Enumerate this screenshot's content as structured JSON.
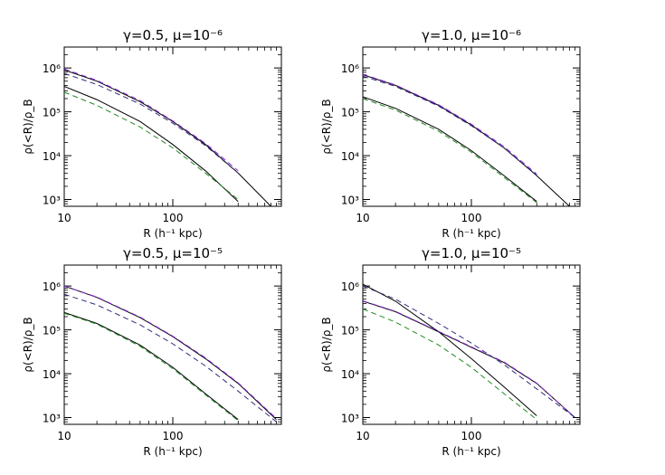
{
  "chart_data": [
    {
      "type": "line",
      "title": "γ=0.5,  μ=10⁻⁶",
      "xlabel": "R (h⁻¹ kpc)",
      "ylabel": "ρ(<R)/ρ_B",
      "xscale": "log",
      "yscale": "log",
      "xlim": [
        10,
        1000
      ],
      "ylim": [
        700,
        3000000
      ],
      "xticks": [
        {
          "v": 10,
          "label": "10"
        },
        {
          "v": 100,
          "label": "100"
        }
      ],
      "yticks": [
        {
          "v": 1000,
          "label": "10³"
        },
        {
          "v": 10000,
          "label": "10⁴"
        },
        {
          "v": 100000,
          "label": "10⁵"
        },
        {
          "v": 1000000,
          "label": "10⁶"
        }
      ],
      "series": [
        {
          "color": "#000000",
          "dash": "solid",
          "x": [
            10,
            20,
            50,
            100,
            200,
            400,
            800
          ],
          "y": [
            900000,
            500000,
            170000,
            60000,
            18000,
            4000,
            700
          ]
        },
        {
          "color": "#000000",
          "dash": "solid",
          "x": [
            10,
            20,
            50,
            100,
            200,
            400
          ],
          "y": [
            380000,
            190000,
            60000,
            18000,
            4500,
            900
          ]
        },
        {
          "color": "#8a2be2",
          "dash": "dashed",
          "x": [
            10,
            20,
            50,
            100,
            200,
            400
          ],
          "y": [
            950000,
            520000,
            180000,
            62000,
            19000,
            4500
          ]
        },
        {
          "color": "#2f2f7a",
          "dash": "dashed",
          "x": [
            10,
            20,
            50,
            100,
            200,
            400
          ],
          "y": [
            750000,
            420000,
            150000,
            55000,
            17000,
            4000
          ]
        },
        {
          "color": "#228b22",
          "dash": "dashed",
          "x": [
            10,
            20,
            50,
            100,
            200,
            400
          ],
          "y": [
            280000,
            140000,
            45000,
            15000,
            4000,
            1000
          ]
        }
      ]
    },
    {
      "type": "line",
      "title": "γ=1.0,  μ=10⁻⁶",
      "xlabel": "R (h⁻¹ kpc)",
      "ylabel": "ρ(<R)/ρ_B",
      "xscale": "log",
      "yscale": "log",
      "xlim": [
        10,
        1000
      ],
      "ylim": [
        700,
        3000000
      ],
      "xticks": [
        {
          "v": 10,
          "label": "10"
        },
        {
          "v": 100,
          "label": "100"
        }
      ],
      "yticks": [
        {
          "v": 1000,
          "label": "10³"
        },
        {
          "v": 10000,
          "label": "10⁴"
        },
        {
          "v": 100000,
          "label": "10⁵"
        },
        {
          "v": 1000000,
          "label": "10⁶"
        }
      ],
      "series": [
        {
          "color": "#000000",
          "dash": "solid",
          "x": [
            10,
            20,
            50,
            100,
            200,
            400,
            800
          ],
          "y": [
            700000,
            400000,
            140000,
            50000,
            15000,
            3500,
            700
          ]
        },
        {
          "color": "#000000",
          "dash": "solid",
          "x": [
            10,
            20,
            50,
            100,
            200,
            400
          ],
          "y": [
            220000,
            120000,
            40000,
            13000,
            3500,
            900
          ]
        },
        {
          "color": "#8a2be2",
          "dash": "dashed",
          "x": [
            10,
            20,
            50,
            100,
            200,
            400
          ],
          "y": [
            720000,
            410000,
            145000,
            52000,
            16000,
            3800
          ]
        },
        {
          "color": "#2f2f7a",
          "dash": "dashed",
          "x": [
            10,
            20,
            50,
            100,
            200,
            400
          ],
          "y": [
            650000,
            380000,
            135000,
            48000,
            15000,
            3600
          ]
        },
        {
          "color": "#228b22",
          "dash": "dashed",
          "x": [
            10,
            20,
            50,
            100,
            200,
            400
          ],
          "y": [
            200000,
            110000,
            36000,
            12000,
            3200,
            850
          ]
        }
      ]
    },
    {
      "type": "line",
      "title": "γ=0.5,  μ=10⁻⁵",
      "xlabel": "R (h⁻¹ kpc)",
      "ylabel": "ρ(<R)/ρ_B",
      "xscale": "log",
      "yscale": "log",
      "xlim": [
        10,
        1000
      ],
      "ylim": [
        700,
        3000000
      ],
      "xticks": [
        {
          "v": 10,
          "label": "10"
        },
        {
          "v": 100,
          "label": "100"
        }
      ],
      "yticks": [
        {
          "v": 1000,
          "label": "10³"
        },
        {
          "v": 10000,
          "label": "10⁴"
        },
        {
          "v": 100000,
          "label": "10⁵"
        },
        {
          "v": 1000000,
          "label": "10⁶"
        }
      ],
      "series": [
        {
          "color": "#000000",
          "dash": "solid",
          "x": [
            10,
            20,
            50,
            100,
            200,
            400,
            900
          ],
          "y": [
            1000000,
            550000,
            190000,
            70000,
            22000,
            6000,
            900
          ]
        },
        {
          "color": "#000000",
          "dash": "solid",
          "x": [
            10,
            20,
            50,
            100,
            200,
            400
          ],
          "y": [
            250000,
            140000,
            45000,
            14000,
            3500,
            900
          ]
        },
        {
          "color": "#8a2be2",
          "dash": "dashed",
          "x": [
            10,
            20,
            50,
            100,
            200,
            400,
            900
          ],
          "y": [
            1000000,
            560000,
            195000,
            72000,
            23000,
            6200,
            950
          ]
        },
        {
          "color": "#2f2f7a",
          "dash": "dashed",
          "x": [
            10,
            20,
            50,
            100,
            200,
            400,
            900
          ],
          "y": [
            650000,
            370000,
            130000,
            48000,
            15000,
            4000,
            800
          ]
        },
        {
          "color": "#228b22",
          "dash": "dashed",
          "x": [
            10,
            20,
            50,
            100,
            200,
            400
          ],
          "y": [
            240000,
            135000,
            42000,
            13000,
            3300,
            850
          ]
        }
      ]
    },
    {
      "type": "line",
      "title": "γ=1.0,  μ=10⁻⁵",
      "xlabel": "R (h⁻¹ kpc)",
      "ylabel": "ρ(<R)/ρ_B",
      "xscale": "log",
      "yscale": "log",
      "xlim": [
        10,
        1000
      ],
      "ylim": [
        700,
        3000000
      ],
      "xticks": [
        {
          "v": 10,
          "label": "10"
        },
        {
          "v": 100,
          "label": "100"
        }
      ],
      "yticks": [
        {
          "v": 1000,
          "label": "10³"
        },
        {
          "v": 10000,
          "label": "10⁴"
        },
        {
          "v": 100000,
          "label": "10⁵"
        },
        {
          "v": 1000000,
          "label": "10⁶"
        }
      ],
      "series": [
        {
          "color": "#000000",
          "dash": "solid",
          "x": [
            10,
            20,
            50,
            100,
            200,
            400,
            900
          ],
          "y": [
            450000,
            260000,
            90000,
            40000,
            18000,
            6000,
            1000
          ]
        },
        {
          "color": "#000000",
          "dash": "solid",
          "x": [
            10,
            20,
            50,
            100,
            200,
            400
          ],
          "y": [
            1100000,
            450000,
            90000,
            22000,
            5000,
            1100
          ]
        },
        {
          "color": "#8a2be2",
          "dash": "dashed",
          "x": [
            10,
            20,
            50,
            100,
            200,
            400,
            900
          ],
          "y": [
            460000,
            265000,
            92000,
            41000,
            18500,
            6100,
            1000
          ]
        },
        {
          "color": "#2f2f7a",
          "dash": "dashed",
          "x": [
            10,
            20,
            50,
            100,
            200,
            400,
            900
          ],
          "y": [
            1000000,
            500000,
            140000,
            50000,
            16000,
            4500,
            1000
          ]
        },
        {
          "color": "#228b22",
          "dash": "dashed",
          "x": [
            10,
            20,
            50,
            100,
            200,
            400
          ],
          "y": [
            300000,
            150000,
            45000,
            14000,
            3500,
            900
          ]
        }
      ]
    }
  ]
}
